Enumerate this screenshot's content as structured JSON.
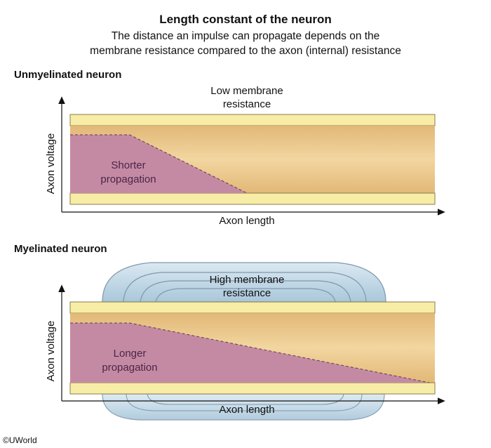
{
  "header": {
    "title": "Length constant of the neuron",
    "subtitle_line1": "The distance an impulse can propagate depends on the",
    "subtitle_line2": "membrane resistance compared to the axon (internal) resistance"
  },
  "unmyelinated": {
    "section_title": "Unmyelinated neuron",
    "membrane_label_line1": "Low membrane",
    "membrane_label_line2": "resistance",
    "propagation_line1": "Shorter",
    "propagation_line2": "propagation",
    "y_axis_label": "Axon voltage",
    "x_axis_label": "Axon length"
  },
  "myelinated": {
    "section_title": "Myelinated neuron",
    "membrane_label_line1": "High membrane",
    "membrane_label_line2": "resistance",
    "propagation_line1": "Longer",
    "propagation_line2": "propagation",
    "y_axis_label": "Axon voltage",
    "x_axis_label": "Axon length"
  },
  "footer": {
    "copyright": "©UWorld"
  },
  "colors": {
    "axon_fill": "#edc98c",
    "membrane_fill": "#f7eda6",
    "membrane_edge": "#8a7b4e",
    "voltage_fill": "#c58aa3",
    "myelin_fill": "#b9d3e3",
    "myelin_edge": "#7f98ac"
  }
}
